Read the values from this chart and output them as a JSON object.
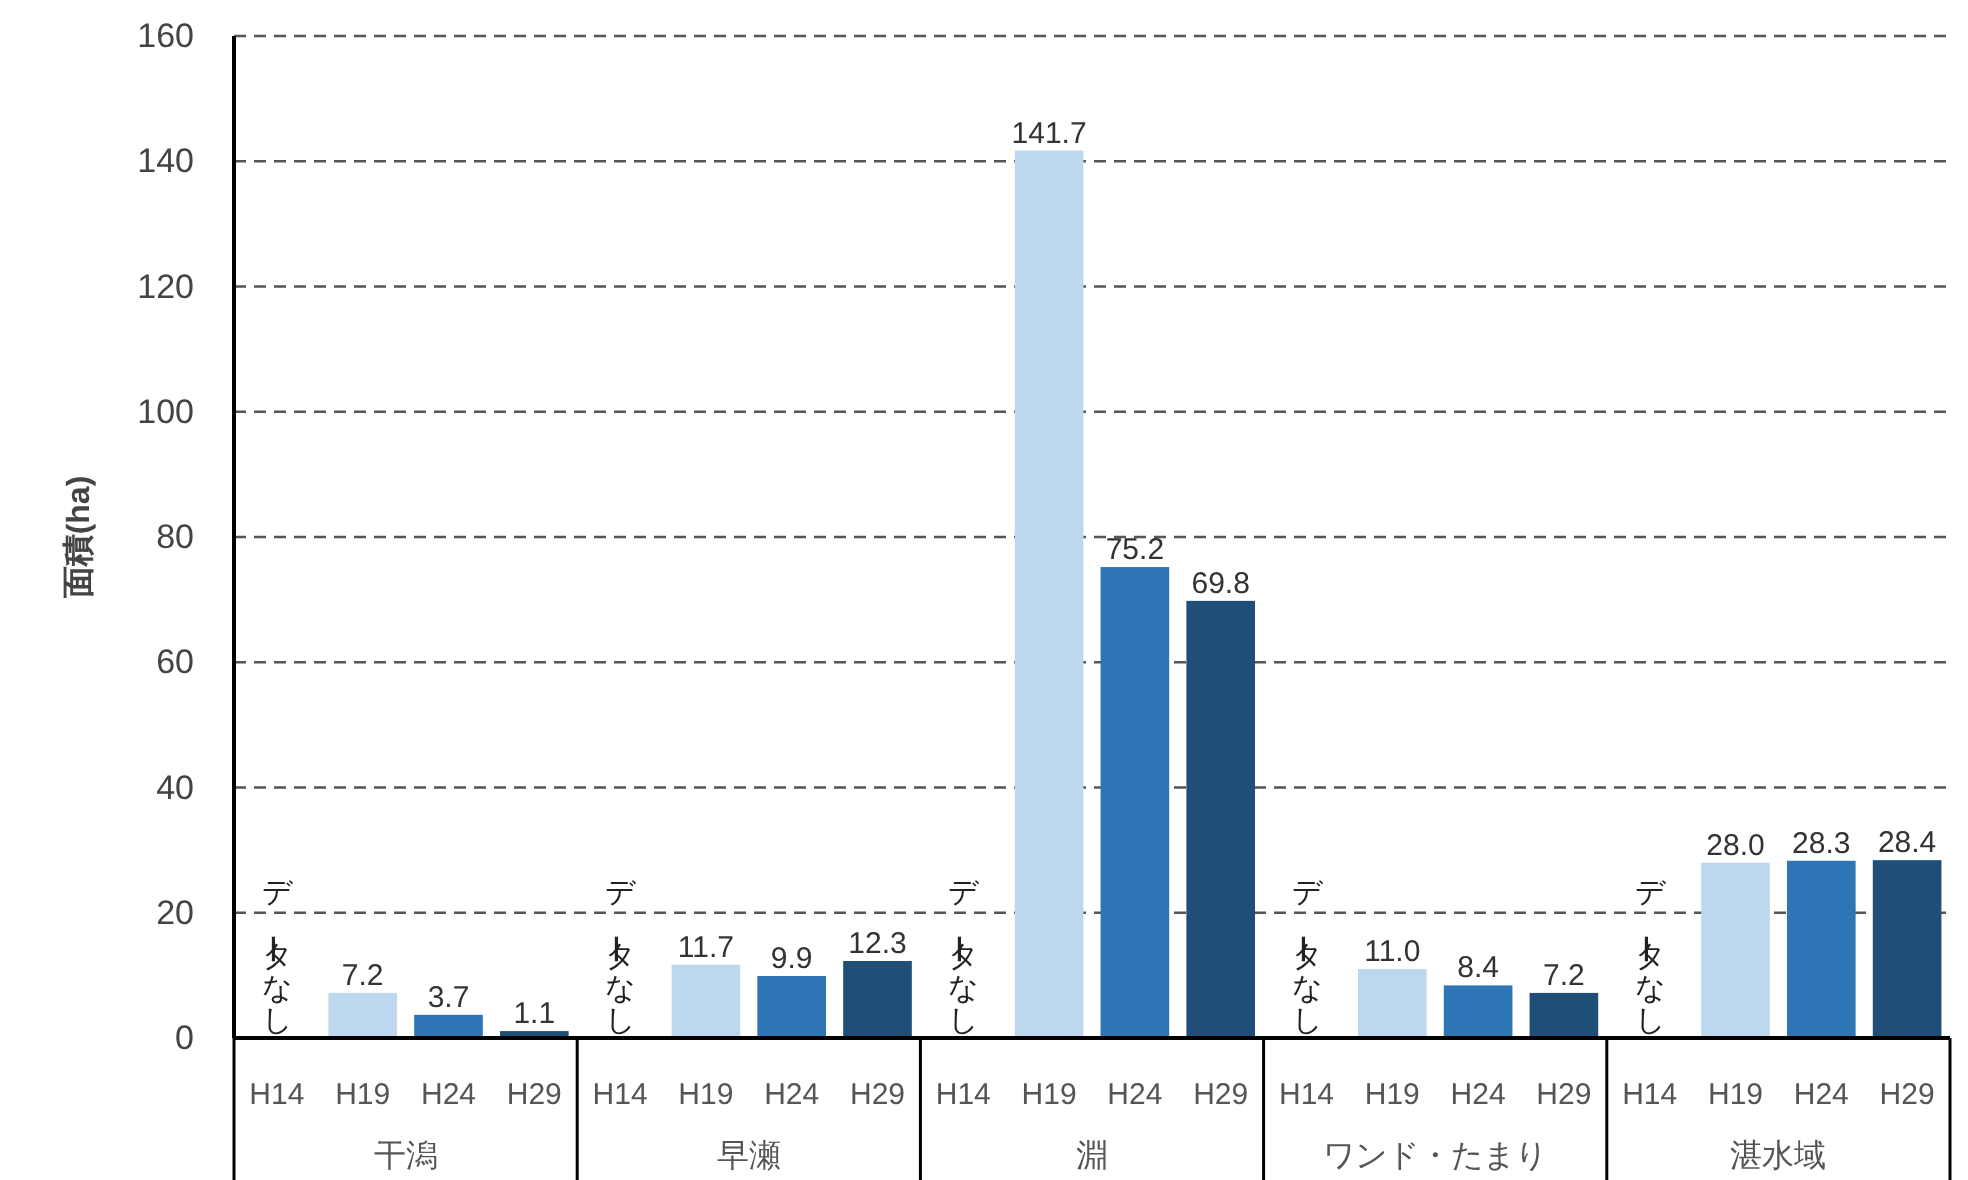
{
  "chart_data": {
    "type": "bar",
    "ylabel": "面積(ha)",
    "categories": [
      "干潟",
      "早瀬",
      "淵",
      "ワンド・たまり",
      "湛水域"
    ],
    "series": [
      {
        "name": "H14",
        "values": [
          null,
          null,
          null,
          null,
          null
        ],
        "value_labels": [
          "データなし",
          "データなし",
          "データなし",
          "データなし",
          "データなし"
        ]
      },
      {
        "name": "H19",
        "color": "#bdd7ee",
        "values": [
          7.2,
          11.7,
          141.7,
          11.0,
          28.0
        ],
        "value_labels": [
          "7.2",
          "11.7",
          "141.7",
          "11.0",
          "28.0"
        ]
      },
      {
        "name": "H24",
        "color": "#2e75b6",
        "values": [
          3.7,
          9.9,
          75.2,
          8.4,
          28.3
        ],
        "value_labels": [
          "3.7",
          "9.9",
          "75.2",
          "8.4",
          "28.3"
        ]
      },
      {
        "name": "H29",
        "color": "#1f4e79",
        "values": [
          1.1,
          12.3,
          69.8,
          7.2,
          28.4
        ],
        "value_labels": [
          "1.1",
          "12.3",
          "69.8",
          "7.2",
          "28.4"
        ]
      }
    ],
    "ylim": [
      0,
      160
    ],
    "yticks": [
      0,
      20,
      40,
      60,
      80,
      100,
      120,
      140,
      160
    ],
    "grid": "y"
  }
}
